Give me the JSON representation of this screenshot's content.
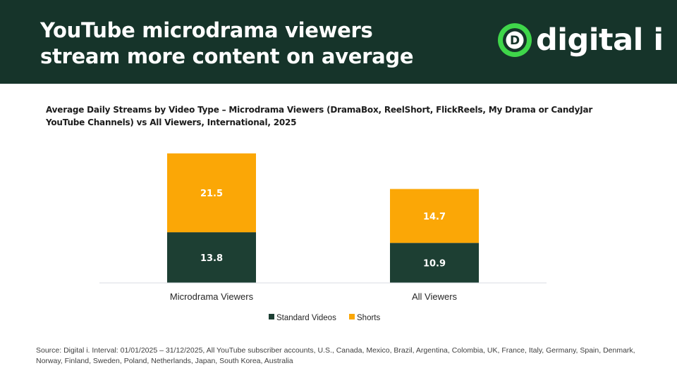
{
  "header": {
    "title_line1": "YouTube microdrama viewers",
    "title_line2": "stream more content on average",
    "logo_letter": "D",
    "logo_text": "digital i"
  },
  "colors": {
    "header_bg": "#16342a",
    "standard": "#1d3f33",
    "shorts": "#fba706",
    "logo_green": "#3fd64a"
  },
  "chart_data": {
    "type": "bar",
    "stacked": true,
    "title": "Average Daily Streams by Video Type – Microdrama Viewers (DramaBox, ReelShort, FlickReels, My Drama or CandyJar YouTube Channels) vs All Viewers, International, 2025",
    "categories": [
      "Microdrama Viewers",
      "All Viewers"
    ],
    "series": [
      {
        "name": "Standard Videos",
        "values": [
          13.8,
          10.9
        ]
      },
      {
        "name": "Shorts",
        "values": [
          21.5,
          14.7
        ]
      }
    ],
    "xlabel": "",
    "ylabel": "",
    "ylim": [
      0,
      35.3
    ],
    "grid": false,
    "legend": "bottom-center"
  },
  "source": "Source: Digital i. Interval: 01/01/2025 – 31/12/2025, All YouTube subscriber accounts, U.S., Canada, Mexico, Brazil, Argentina, Colombia, UK, France, Italy, Germany, Spain, Denmark, Norway, Finland, Sweden, Poland, Netherlands, Japan, South Korea, Australia"
}
